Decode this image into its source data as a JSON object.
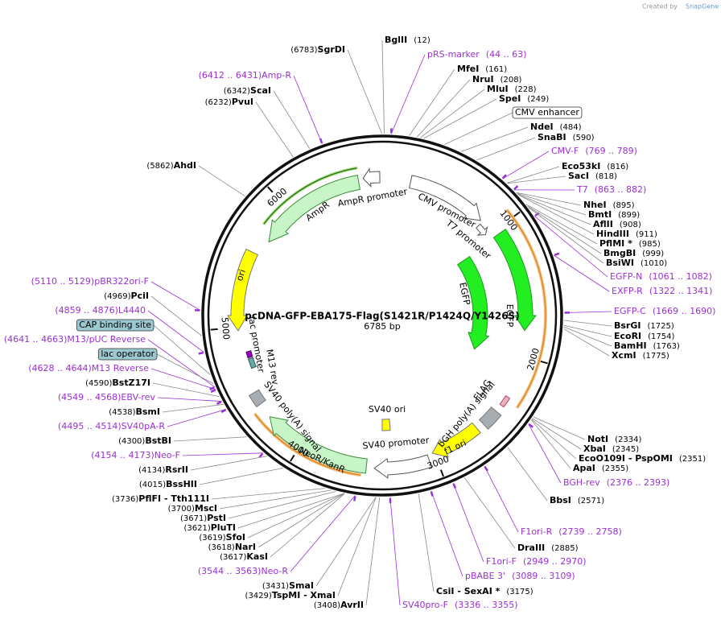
{
  "created_by": "Created by",
  "brand": "SnapGene",
  "map": {
    "title": "pcDNA-GFP-EBA175-Flag(S1421R/P1424Q/Y1426S)",
    "size": "6785 bp",
    "ticks": [
      1000,
      2000,
      3000,
      4000,
      5000,
      6000
    ],
    "features": [
      "AmpR promoter",
      "AmpR",
      "ori",
      "CMV promoter",
      "T7 promoter",
      "EGFP",
      "EGFP",
      "FLAG",
      "bGH poly(A) signal",
      "f1 ori",
      "SV40 promoter",
      "SV40 ori",
      "NeoR/KanR",
      "SV40 poly(A) signal",
      "lac promoter",
      "M13 rev"
    ],
    "boxed_features": [
      "CMV enhancer",
      "CAP binding site",
      "lac operator"
    ],
    "enzymes": [
      {
        "name": "BglII",
        "pos": "(12)"
      },
      {
        "name": "MfeI",
        "pos": "(161)"
      },
      {
        "name": "NruI",
        "pos": "(208)"
      },
      {
        "name": "MluI",
        "pos": "(228)"
      },
      {
        "name": "SpeI",
        "pos": "(249)"
      },
      {
        "name": "NdeI",
        "pos": "(484)"
      },
      {
        "name": "SnaBI",
        "pos": "(590)"
      },
      {
        "name": "Eco53kI",
        "pos": "(816)"
      },
      {
        "name": "SacI",
        "pos": "(818)"
      },
      {
        "name": "NheI",
        "pos": "(895)"
      },
      {
        "name": "BmtI",
        "pos": "(899)"
      },
      {
        "name": "AflII",
        "pos": "(908)"
      },
      {
        "name": "HindIII",
        "pos": "(911)"
      },
      {
        "name": "PflMI *",
        "pos": "(985)"
      },
      {
        "name": "BmgBI",
        "pos": "(999)"
      },
      {
        "name": "BsiWI",
        "pos": "(1010)"
      },
      {
        "name": "BsrGI",
        "pos": "(1725)"
      },
      {
        "name": "EcoRI",
        "pos": "(1754)"
      },
      {
        "name": "BamHI",
        "pos": "(1763)"
      },
      {
        "name": "XcmI",
        "pos": "(1775)"
      },
      {
        "name": "NotI",
        "pos": "(2334)"
      },
      {
        "name": "XbaI",
        "pos": "(2345)"
      },
      {
        "name": "EcoO109I - PspOMI",
        "pos": "(2351)"
      },
      {
        "name": "ApaI",
        "pos": "(2355)"
      },
      {
        "name": "BbsI",
        "pos": "(2571)"
      },
      {
        "name": "DraIII",
        "pos": "(2885)"
      },
      {
        "name": "CsiI - SexAI *",
        "pos": "(3175)"
      },
      {
        "name": "SgrDI",
        "pos": "(6783)"
      },
      {
        "name": "ScaI",
        "pos": "(6342)"
      },
      {
        "name": "PvuI",
        "pos": "(6232)"
      },
      {
        "name": "AhdI",
        "pos": "(5862)"
      },
      {
        "name": "PciI",
        "pos": "(4969)"
      },
      {
        "name": "BstZ17I",
        "pos": "(4590)"
      },
      {
        "name": "BsmI",
        "pos": "(4538)"
      },
      {
        "name": "BstBI",
        "pos": "(4300)"
      },
      {
        "name": "RsrII",
        "pos": "(4134)"
      },
      {
        "name": "BssHII",
        "pos": "(4015)"
      },
      {
        "name": "PflFI - Tth111I",
        "pos": "(3736)"
      },
      {
        "name": "MscI",
        "pos": "(3700)"
      },
      {
        "name": "PstI",
        "pos": "(3671)"
      },
      {
        "name": "PluTI",
        "pos": "(3621)"
      },
      {
        "name": "SfoI",
        "pos": "(3619)"
      },
      {
        "name": "NarI",
        "pos": "(3618)"
      },
      {
        "name": "KasI",
        "pos": "(3617)"
      },
      {
        "name": "SmaI",
        "pos": "(3431)"
      },
      {
        "name": "TspMI - XmaI",
        "pos": "(3429)"
      },
      {
        "name": "AvrII",
        "pos": "(3408)"
      }
    ],
    "primers": [
      {
        "name": "pRS-marker",
        "pos": "(44 .. 63)"
      },
      {
        "name": "CMV-F",
        "pos": "(769 .. 789)"
      },
      {
        "name": "T7",
        "pos": "(863 .. 882)"
      },
      {
        "name": "EGFP-N",
        "pos": "(1061 .. 1082)"
      },
      {
        "name": "EXFP-R",
        "pos": "(1322 .. 1341)"
      },
      {
        "name": "EGFP-C",
        "pos": "(1669 .. 1690)"
      },
      {
        "name": "BGH-rev",
        "pos": "(2376 .. 2393)"
      },
      {
        "name": "F1ori-R",
        "pos": "(2739 .. 2758)"
      },
      {
        "name": "F1ori-F",
        "pos": "(2949 .. 2970)"
      },
      {
        "name": "pBABE 3'",
        "pos": "(3089 .. 3109)"
      },
      {
        "name": "SV40pro-F",
        "pos": "(3336 .. 3355)"
      },
      {
        "name": "Amp-R",
        "pos": "(6412 .. 6431)"
      },
      {
        "name": "pBR322ori-F",
        "pos": "(5110 .. 5129)"
      },
      {
        "name": "L4440",
        "pos": "(4859 .. 4876)"
      },
      {
        "name": "M13/pUC Reverse",
        "pos": "(4641 .. 4663)"
      },
      {
        "name": "M13 Reverse",
        "pos": "(4628 .. 4644)"
      },
      {
        "name": "EBV-rev",
        "pos": "(4549 .. 4568)"
      },
      {
        "name": "SV40pA-R",
        "pos": "(4495 .. 4514)"
      },
      {
        "name": "Neo-F",
        "pos": "(4154 .. 4173)"
      },
      {
        "name": "Neo-R",
        "pos": "(3544 .. 3563)"
      }
    ]
  }
}
